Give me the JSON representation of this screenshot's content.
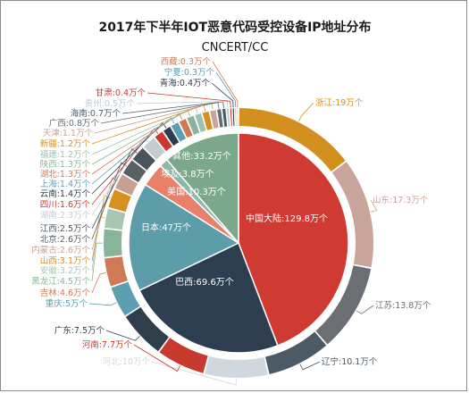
{
  "chart_data": {
    "type": "pie",
    "title": "2017年下半年IOT恶意代码受控设备IP地址分布",
    "subtitle": "CNCERT/CC",
    "inner": {
      "categories": [
        "中国大陆",
        "巴西",
        "日本",
        "美国",
        "埃及",
        "其他"
      ],
      "values": [
        129.8,
        69.6,
        47,
        10.3,
        3.8,
        33.2
      ],
      "labels": [
        "中国大陆:129.8万个",
        "巴西:69.6万个",
        "日本:47万个",
        "美国:10.3万个",
        "埃及:3.8万个",
        "其他:33.2万个"
      ],
      "colors": [
        "#cf3b33",
        "#2c3e50",
        "#5d9da9",
        "#e8806a",
        "#8fb7a8",
        "#7ba88b"
      ]
    },
    "outer": {
      "categories": [
        "浙江",
        "山东",
        "江苏",
        "辽宁",
        "河北",
        "河南",
        "广东",
        "重庆",
        "吉林",
        "黑龙江",
        "安徽",
        "山西",
        "内蒙古",
        "北京",
        "江西",
        "湖南",
        "四川",
        "云南",
        "上海",
        "湖北",
        "陕西",
        "福建",
        "新疆",
        "天津",
        "广西",
        "海南",
        "贵州",
        "甘肃",
        "青海",
        "宁夏",
        "西藏"
      ],
      "values": [
        19,
        17.3,
        13.8,
        10.1,
        10,
        7.7,
        7.5,
        5,
        4.6,
        4.5,
        3.2,
        3.1,
        2.6,
        2.6,
        2.5,
        2.3,
        1.6,
        1.4,
        1.4,
        1.3,
        1.3,
        1.2,
        1.2,
        1.1,
        0.8,
        0.7,
        0.5,
        0.4,
        0.4,
        0.3,
        0.3
      ],
      "labels": [
        "浙江:19万个",
        "山东:17.3万个",
        "江苏:13.8万个",
        "辽宁:10.1万个",
        "河北:10万个",
        "河南:7.7万个",
        "广东:7.5万个",
        "重庆:5万个",
        "吉林:4.6万个",
        "黑龙江:4.5万个",
        "安徽:3.2万个",
        "山西:3.1万个",
        "内蒙古:2.6万个",
        "北京:2.6万个",
        "江西:2.5万个",
        "湖南:2.3万个",
        "四川:1.6万个",
        "云南:1.4万个",
        "上海:1.4万个",
        "湖北:1.3万个",
        "陕西:1.3万个",
        "福建:1.2万个",
        "新疆:1.2万个",
        "天津:1.1万个",
        "广西:0.8万个",
        "海南:0.7万个",
        "贵州:0.5万个",
        "甘肃:0.4万个",
        "青海:0.4万个",
        "宁夏:0.3万个",
        "西藏:0.3万个"
      ],
      "colors": [
        "#d4901f",
        "#c9a49a",
        "#6b6f73",
        "#4a5a66",
        "#d0d7df",
        "#c8392e",
        "#2f3e4c",
        "#5b9fb0",
        "#cf7a55",
        "#88b59a",
        "#a8c5b0",
        "#d78f1f",
        "#c8a090",
        "#5a5f63",
        "#48545e",
        "#c3cbd3",
        "#c83a30",
        "#2f3e4c",
        "#5b9fb0",
        "#cf7a55",
        "#88b59a",
        "#9cc2ae",
        "#d4901f",
        "#c9a49a",
        "#666a6e",
        "#4a5a66",
        "#bfc8d1",
        "#c8392e",
        "#2f3e4c",
        "#5b9fb0",
        "#cf7a55"
      ]
    }
  }
}
